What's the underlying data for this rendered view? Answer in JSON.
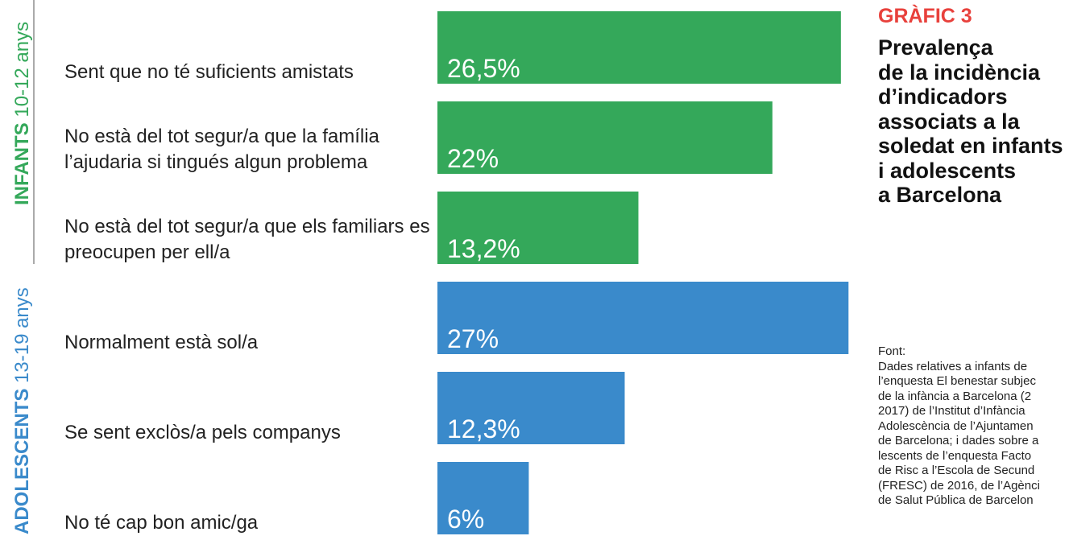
{
  "chart_data": {
    "type": "bar",
    "title": "GRÀFIC 3",
    "subtitle": [
      "Prevalença",
      "de la incidència",
      "d’indicadors",
      "associats a la",
      "soledat en infants",
      "i adolescents",
      "a Barcelona"
    ],
    "categories": [
      "Sent que no té suficients amistats",
      "No està del tot segur/a que la família l’ajudaria si tingués algun problema",
      "No està del tot segur/a que els familiars es preocupen per ell/a",
      "Normalment està sol/a",
      "Se sent exclòs/a pels companys",
      "No té cap bon amic/ga"
    ],
    "values": [
      26.5,
      22,
      13.2,
      27,
      12.3,
      6
    ],
    "value_labels": [
      "26,5%",
      "22%",
      "13,2%",
      "27%",
      "12,3%",
      "6%"
    ],
    "colors": [
      "#34a85a",
      "#34a85a",
      "#34a85a",
      "#3a8acb",
      "#3a8acb",
      "#3a8acb"
    ],
    "groups": [
      {
        "name": "INFANTS",
        "range": "10-12 anys",
        "color": "#34a85a"
      },
      {
        "name": "ADOLESCENTS",
        "range": "13-19 anys",
        "color": "#3a8acb"
      }
    ],
    "source_title": "Font:",
    "source": [
      "Dades relatives a infants de",
      "l’enquesta El benestar subjec",
      "de la infància a Barcelona (2",
      "2017) de l’Institut d’Infància",
      "Adolescència de l’Ajuntamen",
      "de Barcelona; i dades sobre a",
      "lescents de l’enquesta Facto",
      "de Risc a l’Escola de Secund",
      "(FRESC) de 2016, de l’Agènci",
      "de Salut Pública de Barcelon"
    ]
  }
}
